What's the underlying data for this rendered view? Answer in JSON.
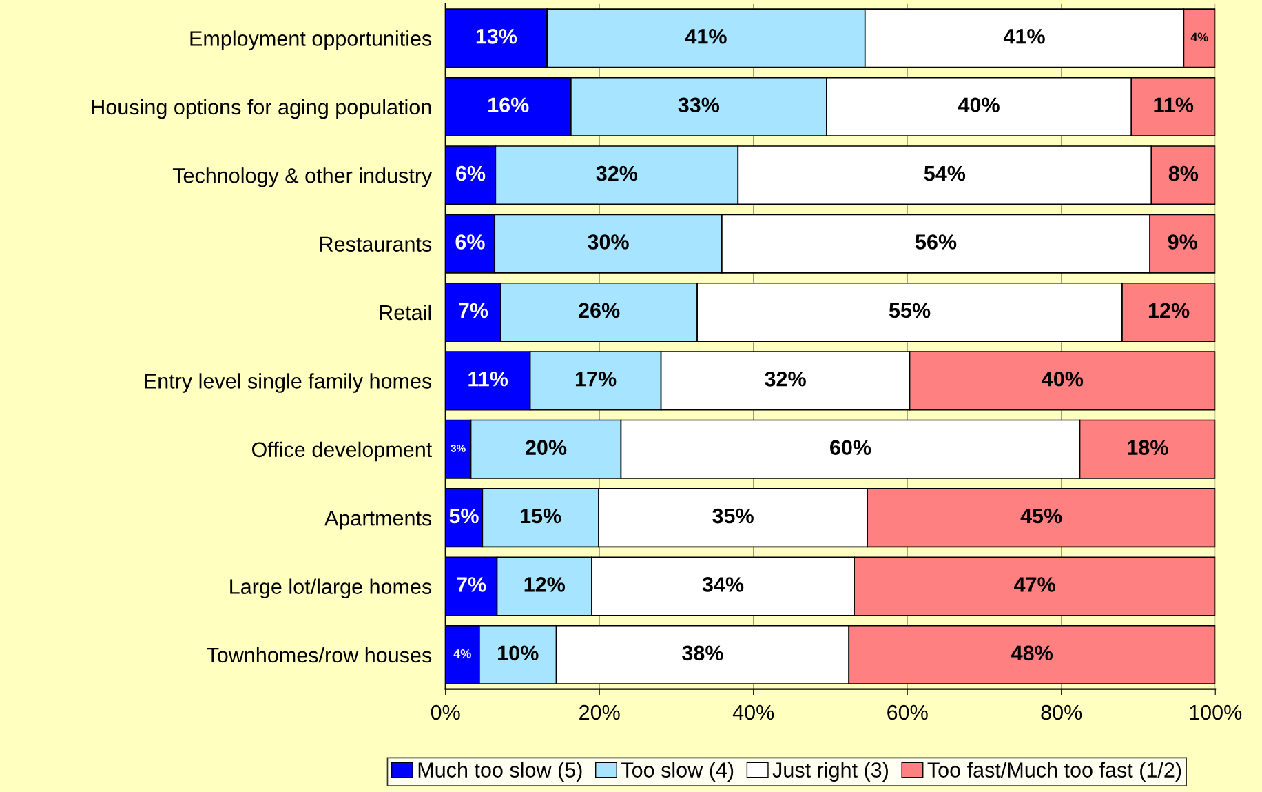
{
  "chart_data": {
    "type": "bar",
    "orientation": "horizontal",
    "stacked": true,
    "categories": [
      "Employment opportunities",
      "Housing options for aging population",
      "Technology & other industry",
      "Restaurants",
      "Retail",
      "Entry level single family homes",
      "Office development",
      "Apartments",
      "Large lot/large homes",
      "Townhomes/row houses"
    ],
    "series": [
      {
        "name": "Much too slow (5)",
        "color": "#0000ff",
        "values": [
          13.2,
          16.3,
          6.5,
          6.4,
          7.2,
          11.0,
          3.3,
          4.8,
          6.7,
          4.4
        ],
        "value_labels": [
          "13%",
          "16%",
          "6%",
          "6%",
          "7%",
          "11%",
          "3%",
          "5%",
          "7%",
          "4%"
        ]
      },
      {
        "name": "Too slow (4)",
        "color": "#a6e4ff",
        "values": [
          41.3,
          33.2,
          31.5,
          29.5,
          25.5,
          17.0,
          19.5,
          15.1,
          12.3,
          10.0
        ],
        "value_labels": [
          "41%",
          "33%",
          "32%",
          "30%",
          "26%",
          "17%",
          "20%",
          "15%",
          "12%",
          "10%"
        ]
      },
      {
        "name": "Just right (3)",
        "color": "#ffffff",
        "values": [
          41.4,
          39.6,
          53.7,
          55.6,
          55.2,
          32.3,
          59.6,
          34.9,
          34.1,
          38.0
        ],
        "value_labels": [
          "41%",
          "40%",
          "54%",
          "56%",
          "55%",
          "32%",
          "60%",
          "35%",
          "34%",
          "38%"
        ]
      },
      {
        "name": "Too fast/Much too fast (1/2)",
        "color": "#ff8080",
        "values": [
          4.1,
          10.9,
          8.3,
          8.5,
          12.1,
          39.7,
          17.6,
          45.2,
          46.9,
          47.6
        ],
        "value_labels": [
          "4%",
          "11%",
          "8%",
          "9%",
          "12%",
          "40%",
          "18%",
          "45%",
          "47%",
          "48%"
        ]
      }
    ],
    "xlim": [
      0,
      100
    ],
    "xticks": [
      {
        "value": 0,
        "label": "0%"
      },
      {
        "value": 20,
        "label": "20%"
      },
      {
        "value": 40,
        "label": "40%"
      },
      {
        "value": 60,
        "label": "60%"
      },
      {
        "value": 80,
        "label": "80%"
      },
      {
        "value": 100,
        "label": "100%"
      }
    ],
    "grid": "x",
    "legend": "bottom"
  }
}
